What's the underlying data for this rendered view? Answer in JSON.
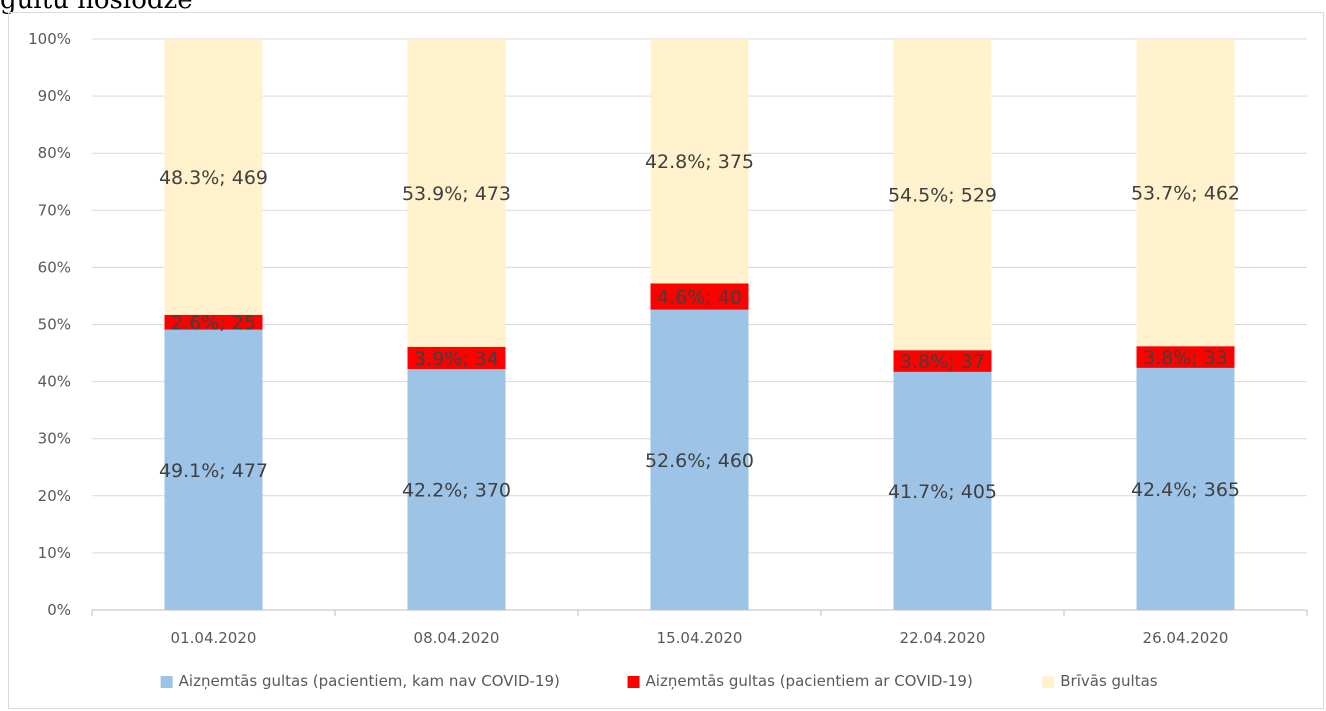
{
  "header_fragment": "gultu noslodze",
  "chart_data": {
    "type": "bar",
    "stacked": true,
    "percent_stacked": true,
    "title": "",
    "xlabel": "",
    "ylabel": "",
    "ylim": [
      0,
      100
    ],
    "y_ticks": [
      "0%",
      "10%",
      "20%",
      "30%",
      "40%",
      "50%",
      "60%",
      "70%",
      "80%",
      "90%",
      "100%"
    ],
    "grid": true,
    "legend_position": "bottom",
    "categories": [
      "01.04.2020",
      "08.04.2020",
      "15.04.2020",
      "22.04.2020",
      "26.04.2020"
    ],
    "series": [
      {
        "name": "Aizņemtās gultas (pacientiem, kam nav COVID-19)",
        "color": "#9dc3e6",
        "values": [
          49.1,
          42.2,
          52.6,
          41.7,
          42.4
        ],
        "labels": [
          "49.1%; 477",
          "42.2%; 370",
          "52.6%; 460",
          "41.7%; 405",
          "42.4%; 365"
        ]
      },
      {
        "name": "Aizņemtās gultas (pacientiem ar COVID-19)",
        "color": "#ff0000",
        "values": [
          2.6,
          3.9,
          4.6,
          3.8,
          3.8
        ],
        "labels": [
          "2.6%; 25",
          "3.9%; 34",
          "4.6%; 40",
          "3.8%; 37",
          "3.8%; 33"
        ]
      },
      {
        "name": "Brīvās gultas",
        "color": "#fff2cc",
        "values": [
          48.3,
          53.9,
          42.8,
          54.5,
          53.7
        ],
        "labels": [
          "48.3%; 469",
          "53.9%; 473",
          "42.8%; 375",
          "54.5%; 529",
          "53.7%; 462"
        ]
      }
    ]
  }
}
